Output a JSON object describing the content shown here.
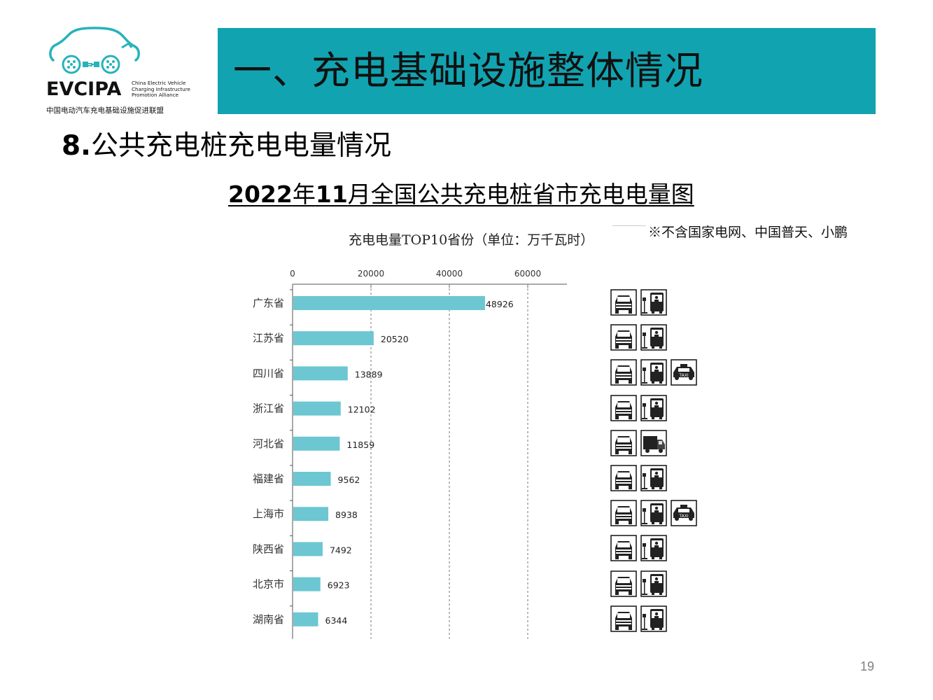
{
  "logo": {
    "main": "EVCIPA",
    "en_lines": [
      "China Electric Vehicle",
      "Charging Infrastructure",
      "Promotion Alliance"
    ],
    "cn": "中国电动汽车充电基础设施促进联盟",
    "color": "#27b3bb"
  },
  "banner": {
    "title": "一、充电基础设施整体情况",
    "color": "#12a3b1"
  },
  "section": {
    "number": "8.",
    "title": "公共充电桩充电电量情况"
  },
  "headline": {
    "year": "2022",
    "y_unit": "年",
    "month": "11",
    "rest": "月全国公共充电桩省市充电电量图"
  },
  "note": "※不含国家电网、中国普天、小鹏",
  "page_number": "19",
  "vehicle_icons": [
    [
      "car-icon",
      "bus-icon"
    ],
    [
      "car-icon",
      "bus-icon"
    ],
    [
      "car-icon",
      "bus-icon",
      "taxi-icon"
    ],
    [
      "car-icon",
      "bus-icon"
    ],
    [
      "car-icon",
      "truck-icon"
    ],
    [
      "car-icon",
      "bus-icon"
    ],
    [
      "car-icon",
      "bus-icon",
      "taxi-icon"
    ],
    [
      "car-icon",
      "bus-icon"
    ],
    [
      "car-icon",
      "bus-icon"
    ],
    [
      "car-icon",
      "bus-icon"
    ]
  ],
  "chart_data": {
    "type": "bar",
    "orientation": "horizontal",
    "title": "充电电量TOP10省份（单位：万千瓦时）",
    "categories": [
      "广东省",
      "江苏省",
      "四川省",
      "浙江省",
      "河北省",
      "福建省",
      "上海市",
      "陕西省",
      "北京市",
      "湖南省"
    ],
    "values": [
      48926,
      20520,
      13889,
      12102,
      11859,
      9562,
      8938,
      7492,
      6923,
      6344
    ],
    "x_ticks": [
      0,
      20000,
      40000,
      60000
    ],
    "xlim": [
      0,
      70000
    ],
    "grid": "vertical dashed",
    "bar_color": "#6cc7d2",
    "axis_position": "top"
  }
}
